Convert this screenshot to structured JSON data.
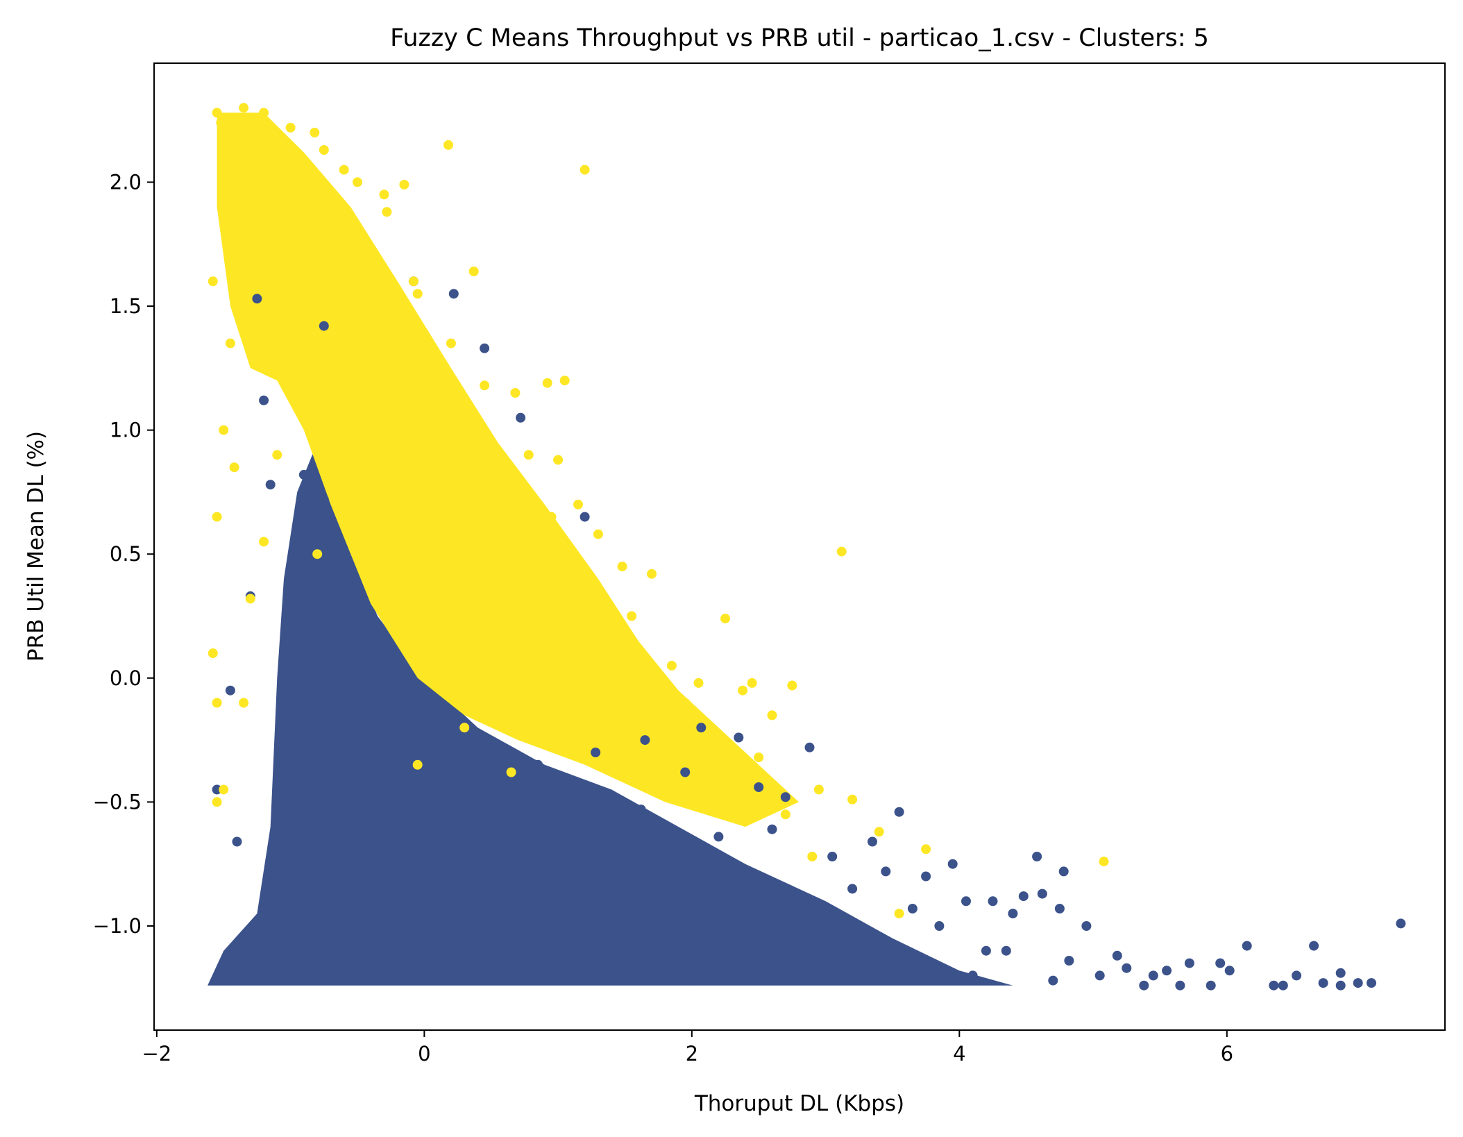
{
  "chart_data": {
    "type": "scatter",
    "title": "Fuzzy C Means Throughput vs PRB util - particao_1.csv - Clusters: 5",
    "xlabel": "Thoruput DL (Kbps)",
    "ylabel": "PRB Util Mean DL (%)",
    "xlim": [
      -2.02,
      7.63
    ],
    "ylim": [
      -1.42,
      2.48
    ],
    "x_ticks": [
      -2,
      0,
      2,
      4,
      6
    ],
    "x_tick_labels": [
      "−2",
      "0",
      "2",
      "4",
      "6"
    ],
    "y_ticks": [
      -1.0,
      -0.5,
      0.0,
      0.5,
      1.0,
      1.5,
      2.0
    ],
    "y_tick_labels": [
      "−1.0",
      "−0.5",
      "0.0",
      "0.5",
      "1.0",
      "1.5",
      "2.0"
    ],
    "grid": false,
    "series": [
      {
        "color": "#3b528b",
        "points": [
          [
            7.3,
            -0.99
          ],
          [
            7.08,
            -1.23
          ],
          [
            6.98,
            -1.23
          ],
          [
            6.85,
            -1.19
          ],
          [
            6.85,
            -1.24
          ],
          [
            6.72,
            -1.23
          ],
          [
            6.65,
            -1.08
          ],
          [
            6.52,
            -1.2
          ],
          [
            6.42,
            -1.24
          ],
          [
            6.35,
            -1.24
          ],
          [
            6.15,
            -1.08
          ],
          [
            6.02,
            -1.18
          ],
          [
            5.95,
            -1.15
          ],
          [
            5.88,
            -1.24
          ],
          [
            5.72,
            -1.15
          ],
          [
            5.65,
            -1.24
          ],
          [
            5.55,
            -1.18
          ],
          [
            5.45,
            -1.2
          ],
          [
            5.38,
            -1.24
          ],
          [
            5.25,
            -1.17
          ],
          [
            5.18,
            -1.12
          ],
          [
            5.05,
            -1.2
          ],
          [
            4.95,
            -1.0
          ],
          [
            4.82,
            -1.14
          ],
          [
            4.78,
            -0.78
          ],
          [
            4.75,
            -0.93
          ],
          [
            4.62,
            -0.87
          ],
          [
            4.58,
            -0.72
          ],
          [
            4.48,
            -0.88
          ],
          [
            4.4,
            -0.95
          ],
          [
            4.25,
            -0.9
          ],
          [
            4.2,
            -1.1
          ],
          [
            4.05,
            -0.9
          ],
          [
            3.95,
            -0.75
          ],
          [
            3.85,
            -1.0
          ],
          [
            3.75,
            -0.8
          ],
          [
            3.65,
            -0.93
          ],
          [
            3.55,
            -0.54
          ],
          [
            3.45,
            -0.78
          ],
          [
            3.35,
            -0.66
          ],
          [
            3.2,
            -0.85
          ],
          [
            3.05,
            -0.72
          ],
          [
            2.88,
            -0.28
          ],
          [
            2.7,
            -0.48
          ],
          [
            2.6,
            -0.61
          ],
          [
            2.5,
            -0.44
          ],
          [
            2.35,
            -0.24
          ],
          [
            2.2,
            -0.64
          ],
          [
            2.07,
            -0.2
          ],
          [
            1.95,
            -0.38
          ],
          [
            1.85,
            -0.87
          ],
          [
            1.65,
            -0.25
          ],
          [
            1.45,
            -0.5
          ],
          [
            1.2,
            0.65
          ],
          [
            1.28,
            -0.3
          ],
          [
            0.95,
            -0.62
          ],
          [
            0.72,
            1.05
          ],
          [
            0.45,
            1.33
          ],
          [
            0.22,
            1.55
          ],
          [
            -0.08,
            1.6
          ],
          [
            -0.75,
            1.42
          ],
          [
            -1.25,
            1.53
          ],
          [
            -1.2,
            1.12
          ],
          [
            -1.15,
            0.78
          ],
          [
            -0.9,
            0.82
          ],
          [
            -0.75,
            0.72
          ],
          [
            -1.3,
            0.33
          ],
          [
            -1.45,
            -0.05
          ],
          [
            -1.55,
            -0.45
          ],
          [
            -1.4,
            -0.66
          ],
          [
            -1.2,
            -1.0
          ],
          [
            -0.95,
            -0.65
          ],
          [
            -0.6,
            -0.22
          ],
          [
            -0.35,
            0.0
          ],
          [
            -0.1,
            -0.32
          ],
          [
            0.15,
            -0.65
          ],
          [
            0.35,
            -0.28
          ],
          [
            0.55,
            -0.82
          ],
          [
            0.85,
            -0.35
          ],
          [
            1.05,
            -0.95
          ],
          [
            1.35,
            -0.78
          ],
          [
            1.6,
            -0.65
          ],
          [
            1.9,
            -0.92
          ],
          [
            2.2,
            -1.05
          ],
          [
            2.45,
            -0.82
          ],
          [
            2.75,
            -1.0
          ],
          [
            3.0,
            -1.12
          ],
          [
            3.25,
            -1.05
          ],
          [
            3.5,
            -1.2
          ],
          [
            3.8,
            -1.15
          ],
          [
            4.1,
            -1.2
          ],
          [
            4.35,
            -1.1
          ],
          [
            4.7,
            -1.22
          ],
          [
            1.62,
            -0.53
          ],
          [
            0.38,
            -0.6
          ],
          [
            -0.55,
            0.2
          ],
          [
            -0.98,
            0.45
          ],
          [
            -0.4,
            -1.05
          ],
          [
            0.05,
            -1.18
          ],
          [
            1.0,
            -1.2
          ],
          [
            2.0,
            -1.22
          ],
          [
            -1.5,
            -1.22
          ]
        ]
      },
      {
        "color": "#fde725",
        "points": [
          [
            -1.55,
            2.28
          ],
          [
            -1.35,
            2.3
          ],
          [
            -1.2,
            2.28
          ],
          [
            -1.0,
            2.22
          ],
          [
            -0.82,
            2.2
          ],
          [
            -0.75,
            2.13
          ],
          [
            -0.6,
            2.05
          ],
          [
            -0.5,
            2.0
          ],
          [
            -0.3,
            1.95
          ],
          [
            -0.15,
            1.99
          ],
          [
            0.18,
            2.15
          ],
          [
            1.2,
            2.05
          ],
          [
            -0.08,
            1.6
          ],
          [
            0.37,
            1.64
          ],
          [
            -0.5,
            1.7
          ],
          [
            -0.28,
            1.88
          ],
          [
            -1.58,
            1.6
          ],
          [
            -1.45,
            1.35
          ],
          [
            -1.5,
            1.0
          ],
          [
            -1.42,
            0.85
          ],
          [
            -1.55,
            0.65
          ],
          [
            -1.58,
            0.1
          ],
          [
            -1.55,
            -0.1
          ],
          [
            -1.55,
            -0.5
          ],
          [
            -1.5,
            -0.45
          ],
          [
            -1.35,
            -0.1
          ],
          [
            -1.3,
            0.32
          ],
          [
            -0.05,
            1.55
          ],
          [
            0.2,
            1.35
          ],
          [
            0.45,
            1.18
          ],
          [
            0.92,
            1.19
          ],
          [
            1.05,
            1.2
          ],
          [
            0.68,
            1.15
          ],
          [
            0.78,
            0.9
          ],
          [
            1.0,
            0.88
          ],
          [
            1.15,
            0.7
          ],
          [
            0.95,
            0.65
          ],
          [
            1.3,
            0.58
          ],
          [
            1.48,
            0.45
          ],
          [
            1.7,
            0.42
          ],
          [
            1.55,
            0.25
          ],
          [
            1.85,
            0.05
          ],
          [
            2.05,
            -0.02
          ],
          [
            2.25,
            0.24
          ],
          [
            2.45,
            -0.02
          ],
          [
            2.75,
            -0.03
          ],
          [
            3.12,
            0.51
          ],
          [
            2.95,
            -0.45
          ],
          [
            3.2,
            -0.49
          ],
          [
            3.4,
            -0.62
          ],
          [
            3.75,
            -0.69
          ],
          [
            5.08,
            -0.74
          ],
          [
            3.55,
            -0.95
          ],
          [
            2.9,
            -0.72
          ],
          [
            2.7,
            -0.55
          ],
          [
            2.5,
            -0.32
          ],
          [
            2.3,
            -0.55
          ],
          [
            2.1,
            -0.3
          ],
          [
            1.95,
            -0.1
          ],
          [
            0.65,
            -0.38
          ],
          [
            0.3,
            -0.2
          ],
          [
            -0.05,
            -0.35
          ],
          [
            -0.8,
            0.5
          ],
          [
            -0.55,
            0.9
          ],
          [
            -0.35,
            1.25
          ],
          [
            -0.1,
            1.05
          ],
          [
            0.15,
            0.75
          ],
          [
            0.4,
            0.55
          ],
          [
            0.6,
            0.3
          ],
          [
            0.85,
            0.15
          ],
          [
            1.1,
            0.1
          ],
          [
            1.35,
            0.05
          ],
          [
            -1.0,
            1.55
          ],
          [
            -1.15,
            1.8
          ],
          [
            -0.9,
            1.95
          ],
          [
            -1.3,
            2.05
          ],
          [
            -1.45,
            2.15
          ],
          [
            -1.52,
            2.24
          ],
          [
            -0.7,
            1.3
          ],
          [
            -0.45,
            1.55
          ],
          [
            0.0,
            1.3
          ],
          [
            0.3,
            0.95
          ],
          [
            0.55,
            0.75
          ],
          [
            1.65,
            -0.2
          ],
          [
            1.8,
            -0.25
          ],
          [
            2.6,
            -0.15
          ],
          [
            2.38,
            -0.05
          ],
          [
            -1.2,
            0.55
          ],
          [
            -1.1,
            0.9
          ],
          [
            -0.9,
            1.2
          ]
        ]
      }
    ]
  }
}
